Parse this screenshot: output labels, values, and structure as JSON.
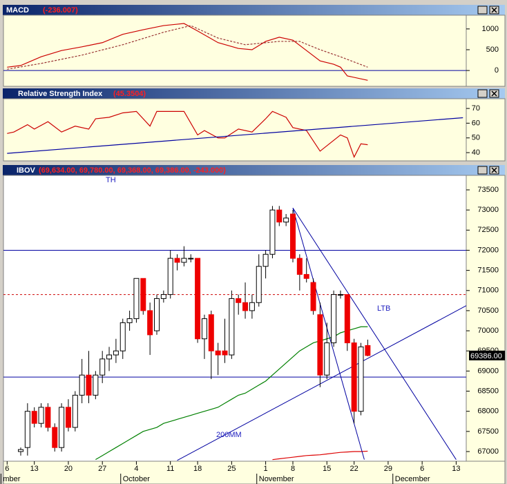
{
  "chart_data": [
    {
      "type": "line",
      "title": "MACD",
      "readout": "(-236.007)",
      "ylim": [
        -380,
        1330
      ],
      "yticks": [
        0,
        500,
        1000
      ],
      "hlines": [
        {
          "value": 0,
          "color": "#0000a0"
        }
      ],
      "series": [
        {
          "color": "#cc0000",
          "style": "solid",
          "x": [
            -2,
            0,
            3,
            6,
            9,
            12,
            15,
            18,
            21,
            24,
            26,
            29,
            32,
            34,
            36,
            38,
            40,
            42,
            44,
            46,
            47,
            48,
            51
          ],
          "values": [
            80,
            120,
            330,
            480,
            570,
            670,
            870,
            980,
            1080,
            1130,
            950,
            670,
            530,
            500,
            700,
            800,
            730,
            480,
            230,
            150,
            80,
            -130,
            -236
          ]
        },
        {
          "color": "#993333",
          "style": "dashed",
          "x": [
            -2,
            3,
            9,
            15,
            21,
            25,
            29,
            33,
            38,
            41,
            44,
            47,
            51
          ],
          "values": [
            30,
            170,
            370,
            620,
            920,
            1080,
            780,
            620,
            700,
            700,
            500,
            330,
            80
          ]
        }
      ]
    },
    {
      "type": "line",
      "title": "Relative Strength Index",
      "readout": "(45.3504)",
      "ylim": [
        34.4,
        76.6
      ],
      "yticks": [
        40,
        50,
        60,
        70
      ],
      "series": [
        {
          "color": "#cc0000",
          "style": "solid",
          "x": [
            -2,
            -1,
            1,
            2,
            4,
            6,
            8,
            10,
            11,
            13,
            15,
            17,
            19,
            20,
            24,
            26,
            27,
            29,
            30,
            32,
            34,
            36,
            37,
            39,
            40,
            42,
            44,
            47,
            48,
            49,
            50,
            51
          ],
          "values": [
            53,
            54,
            59,
            56,
            61,
            54,
            58,
            56,
            63,
            64,
            67,
            68,
            58,
            68,
            68,
            52,
            55,
            50,
            50,
            56,
            54,
            63,
            68,
            64,
            57,
            55,
            41,
            52,
            50,
            37,
            46,
            45.35
          ]
        },
        {
          "color": "#0000a0",
          "style": "solid",
          "x": [
            -2,
            65
          ],
          "values": [
            39.5,
            63.7
          ]
        }
      ]
    },
    {
      "type": "candlestick",
      "title": "IBOV",
      "readout": "(69,634.00, 69,780.00, 69,368.00, 69,386.00, -243.000)",
      "ylim": [
        66760,
        73860
      ],
      "yticks": [
        67000,
        67500,
        68000,
        68500,
        69000,
        69500,
        70000,
        70500,
        71000,
        71500,
        72000,
        72500,
        73000,
        73500
      ],
      "xticks": [
        {
          "value": -2,
          "label": "6"
        },
        {
          "value": 2,
          "label": "13"
        },
        {
          "value": 7,
          "label": "20"
        },
        {
          "value": 12,
          "label": "27"
        },
        {
          "value": 17,
          "label": "4"
        },
        {
          "value": 22,
          "label": "11"
        },
        {
          "value": 26,
          "label": "18"
        },
        {
          "value": 31,
          "label": "25"
        },
        {
          "value": 36,
          "label": "1"
        },
        {
          "value": 40,
          "label": "8"
        },
        {
          "value": 45,
          "label": "15"
        },
        {
          "value": 49,
          "label": "22"
        },
        {
          "value": 54,
          "label": "29"
        },
        {
          "value": 59,
          "label": "6"
        },
        {
          "value": 64,
          "label": "13"
        }
      ],
      "month_labels": [
        {
          "value": -2.6,
          "label": "mber"
        },
        {
          "value": 15,
          "label": "October"
        },
        {
          "value": 35,
          "label": "November"
        },
        {
          "value": 55,
          "label": "December"
        }
      ],
      "categories": [
        null,
        null,
        null,
        null,
        null,
        null,
        null,
        null,
        null,
        null,
        null,
        null,
        null,
        null,
        null,
        null,
        null,
        null,
        null,
        null,
        null,
        null,
        null,
        null,
        null,
        null,
        null,
        null,
        null,
        null,
        null,
        null,
        null,
        null,
        null,
        null,
        null,
        null,
        null,
        null,
        null,
        null,
        null,
        null,
        null,
        null,
        null,
        null,
        null,
        null,
        null,
        null
      ],
      "open": [
        67000,
        67100,
        68000,
        67700,
        68100,
        67600,
        67100,
        68100,
        67600,
        68400,
        68900,
        68400,
        68900,
        69300,
        69400,
        69500,
        70200,
        70300,
        71300,
        70500,
        70000,
        70800,
        70900,
        71800,
        71700,
        71800,
        71800,
        69800,
        70400,
        69500,
        69500,
        69400,
        70800,
        70700,
        70500,
        70700,
        71600,
        71900,
        73000,
        72700,
        72900,
        71800,
        71400,
        71200,
        70400,
        68900,
        69700,
        70900,
        70900,
        69700,
        68000,
        69634
      ],
      "high": [
        67100,
        68200,
        68100,
        68200,
        68200,
        67700,
        68200,
        68300,
        68500,
        69300,
        69500,
        69000,
        69500,
        69600,
        69800,
        70300,
        70500,
        71300,
        71300,
        70700,
        70900,
        71000,
        72000,
        71900,
        72100,
        71900,
        71800,
        70400,
        70500,
        69700,
        70300,
        71000,
        70900,
        71200,
        70900,
        71900,
        72000,
        73100,
        73100,
        72900,
        73000,
        71900,
        71800,
        71300,
        70700,
        70200,
        71000,
        71000,
        70900,
        69800,
        69700,
        69780
      ],
      "low": [
        66900,
        66900,
        67600,
        67600,
        67500,
        67000,
        67000,
        67500,
        67500,
        68200,
        68200,
        68300,
        68700,
        69000,
        69200,
        69300,
        70000,
        70200,
        70400,
        69400,
        69900,
        70700,
        70800,
        71500,
        71600,
        71700,
        69700,
        69300,
        68800,
        68900,
        69200,
        69300,
        70400,
        70300,
        70300,
        70600,
        71300,
        71800,
        72600,
        72600,
        71700,
        71000,
        71200,
        70400,
        68600,
        68800,
        69600,
        70800,
        69500,
        67700,
        67900,
        69368
      ],
      "close": [
        67050,
        68000,
        67700,
        68100,
        67600,
        67100,
        68100,
        67600,
        68400,
        68900,
        68400,
        68900,
        69300,
        69400,
        69500,
        70200,
        70300,
        71300,
        70500,
        69900,
        70800,
        70900,
        71800,
        71700,
        71800,
        71800,
        69800,
        70300,
        69500,
        69400,
        69400,
        70800,
        70700,
        70500,
        70700,
        71600,
        71900,
        73000,
        72700,
        72800,
        71800,
        71400,
        71300,
        70500,
        68900,
        69700,
        70900,
        70900,
        69700,
        68000,
        69600,
        69386
      ],
      "last_label": "69386.00",
      "up_color": "#ffffff",
      "down_color": "#ee0000",
      "hlines": [
        {
          "value": 72000,
          "color": "#0000a0"
        },
        {
          "value": 70900,
          "color": "#cc0000",
          "style": "dashed"
        },
        {
          "value": 68850,
          "color": "#0000a0"
        }
      ],
      "series": [
        {
          "color": "#008000",
          "values": [
            null,
            null,
            null,
            null,
            null,
            null,
            null,
            null,
            null,
            null,
            null,
            66800,
            66900,
            67000,
            67100,
            67200,
            67300,
            67400,
            67500,
            67550,
            67600,
            67700,
            67750,
            67800,
            67850,
            67900,
            67950,
            68000,
            68050,
            68100,
            68200,
            68300,
            68400,
            68450,
            68550,
            68650,
            68750,
            68900,
            69050,
            69200,
            69350,
            69500,
            69600,
            69700,
            69750,
            69800,
            69850,
            69950,
            70000,
            70050,
            70100,
            70100
          ]
        },
        {
          "color": "#dd0000",
          "values": [
            null,
            null,
            null,
            null,
            null,
            null,
            null,
            null,
            null,
            null,
            null,
            null,
            null,
            null,
            null,
            null,
            null,
            null,
            null,
            null,
            null,
            null,
            null,
            null,
            null,
            null,
            null,
            null,
            null,
            null,
            null,
            null,
            null,
            null,
            null,
            null,
            null,
            66800,
            66820,
            66840,
            66860,
            66880,
            66900,
            66910,
            66920,
            66940,
            66960,
            66980,
            66990,
            67000,
            67000,
            67010
          ]
        }
      ],
      "trendlines": [
        {
          "color": "#0000a0",
          "x": [
            40,
            64
          ],
          "values": [
            73050,
            66800
          ]
        },
        {
          "color": "#0000a0",
          "x": [
            40,
            50.5
          ],
          "values": [
            73050,
            66800
          ]
        },
        {
          "color": "#0000a0",
          "x": [
            23,
            66
          ],
          "values": [
            66780,
            70670
          ]
        }
      ],
      "annotations": [
        "LTB",
        "200MM",
        "TH"
      ]
    }
  ]
}
